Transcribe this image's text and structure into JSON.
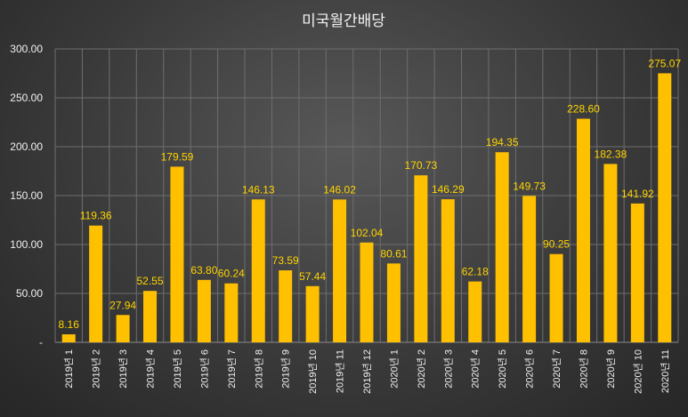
{
  "chart_data": {
    "type": "bar",
    "title": "미국월간배당",
    "categories": [
      "2019년 1",
      "2019년 2",
      "2019년 3",
      "2019년 4",
      "2019년 5",
      "2019년 6",
      "2019년 7",
      "2019년 8",
      "2019년 9",
      "2019년 10",
      "2019년 11",
      "2019년 12",
      "2020년 1",
      "2020년 2",
      "2020년 3",
      "2020년 4",
      "2020년 5",
      "2020년 6",
      "2020년 7",
      "2020년 8",
      "2020년 9",
      "2020년 10",
      "2020년 11"
    ],
    "values": [
      8.16,
      119.36,
      27.94,
      52.55,
      179.59,
      63.8,
      60.24,
      146.13,
      73.59,
      57.44,
      146.02,
      102.04,
      80.61,
      170.73,
      146.29,
      62.18,
      194.35,
      149.73,
      90.25,
      228.6,
      182.38,
      141.92,
      275.07
    ],
    "value_labels": [
      "8.16",
      "119.36",
      "27.94",
      "52.55",
      "179.59",
      "63.80",
      "60.24",
      "146.13",
      "73.59",
      "57.44",
      "146.02",
      "102.04",
      "80.61",
      "170.73",
      "146.29",
      "62.18",
      "194.35",
      "149.73",
      "90.25",
      "228.60",
      "182.38",
      "141.92",
      "275.07"
    ],
    "ylim": [
      0,
      300
    ],
    "yticks": [
      "-",
      "50.00",
      "100.00",
      "150.00",
      "200.00",
      "250.00",
      "300.00"
    ],
    "xlabel": "",
    "ylabel": "",
    "grid": true,
    "legend": "none",
    "colors": {
      "bar": "#ffc000",
      "label": "#ffd400"
    }
  }
}
